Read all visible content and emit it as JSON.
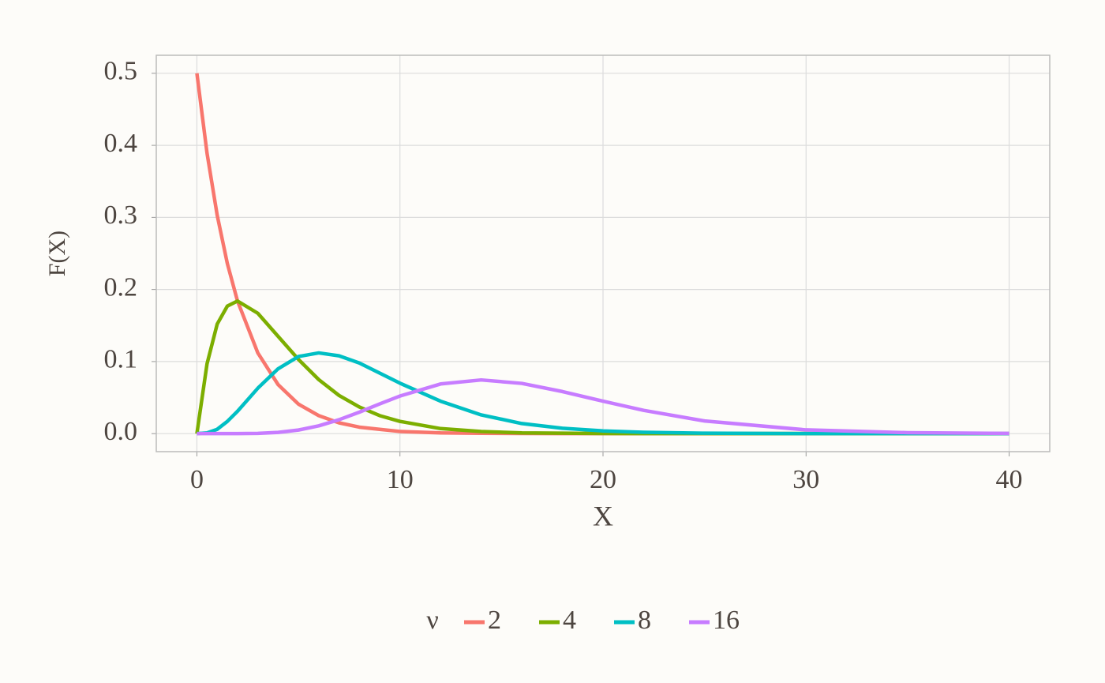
{
  "chart_data": {
    "type": "line",
    "xlabel": "X",
    "ylabel": "F(X)",
    "legend_title": "ν",
    "legend": "bottom",
    "grid": true,
    "x": [
      0,
      0.5,
      1,
      1.5,
      2,
      3,
      4,
      5,
      6,
      7,
      8,
      9,
      10,
      12,
      14,
      16,
      18,
      20,
      22,
      25,
      30,
      35,
      40
    ],
    "series": [
      {
        "name": "2",
        "color": "#f8766d",
        "values": [
          0.5,
          0.389,
          0.303,
          0.236,
          0.184,
          0.112,
          0.068,
          0.041,
          0.025,
          0.015,
          0.009,
          0.006,
          0.003,
          0.001,
          0.0005,
          0.0002,
          0.0001,
          0,
          0,
          0,
          0,
          0,
          0
        ]
      },
      {
        "name": "4",
        "color": "#7cae00",
        "values": [
          0,
          0.097,
          0.152,
          0.177,
          0.184,
          0.167,
          0.135,
          0.103,
          0.075,
          0.053,
          0.037,
          0.025,
          0.017,
          0.007,
          0.003,
          0.001,
          0.0006,
          0.0002,
          0.0001,
          0,
          0,
          0,
          0
        ]
      },
      {
        "name": "8",
        "color": "#00bfc4",
        "values": [
          0,
          0.001,
          0.006,
          0.017,
          0.031,
          0.063,
          0.09,
          0.107,
          0.112,
          0.108,
          0.098,
          0.084,
          0.07,
          0.045,
          0.026,
          0.014,
          0.0075,
          0.0038,
          0.0019,
          0.0006,
          0.0001,
          0,
          0
        ]
      },
      {
        "name": "16",
        "color": "#c77cff",
        "values": [
          0,
          0,
          0,
          0,
          4e-05,
          0.0004,
          0.0017,
          0.005,
          0.0108,
          0.0193,
          0.0298,
          0.0412,
          0.0522,
          0.0689,
          0.0745,
          0.0697,
          0.0584,
          0.045,
          0.0323,
          0.0176,
          0.0052,
          0.0013,
          0.0003
        ]
      }
    ],
    "xlim": [
      -2,
      42
    ],
    "xticks": [
      0,
      10,
      20,
      30,
      40
    ],
    "ylim": [
      -0.025,
      0.525
    ],
    "yticks": [
      {
        "value": 0,
        "label": "0.0"
      },
      0.1,
      0.2,
      0.3,
      0.4,
      0.5
    ]
  }
}
